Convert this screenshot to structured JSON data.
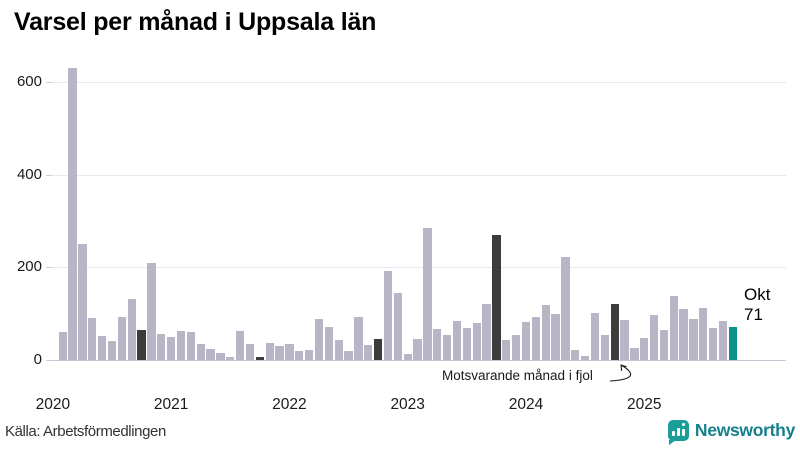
{
  "chart_data": {
    "type": "bar",
    "title": "Varsel per månad i Uppsala län",
    "start_year": 2020,
    "start_month": 1,
    "values": [
      0,
      60,
      630,
      250,
      90,
      52,
      42,
      92,
      131,
      65,
      210,
      56,
      50,
      63,
      60,
      34,
      23,
      16,
      6,
      63,
      34,
      6,
      37,
      30,
      35,
      20,
      22,
      88,
      72,
      43,
      20,
      92,
      33,
      46,
      192,
      144,
      12,
      45,
      285,
      66,
      53,
      84,
      68,
      79,
      120,
      270,
      44,
      53,
      83,
      93,
      119,
      99,
      222,
      21,
      9,
      102,
      54,
      120,
      86,
      26,
      47,
      97,
      65,
      138,
      109,
      88,
      112,
      70,
      85,
      71
    ],
    "compare_month_indices": [
      9,
      21,
      33,
      45,
      57
    ],
    "current_index": 69,
    "yticks": [
      0,
      200,
      400,
      600
    ],
    "ylim": [
      0,
      650
    ],
    "year_labels": [
      "2020",
      "2021",
      "2022",
      "2023",
      "2024",
      "2025"
    ],
    "grid": true,
    "colors": {
      "bar": "#b7b5c6",
      "compare": "#3c3c3c",
      "current": "#0d948a"
    }
  },
  "annotation": {
    "text": "Motsvarande månad i fjol"
  },
  "current_label": {
    "month": "Okt",
    "value": "71"
  },
  "footer": {
    "source": "Källa: Arbetsförmedlingen",
    "brand": "Newsworthy",
    "brand_color": "#15808c"
  }
}
